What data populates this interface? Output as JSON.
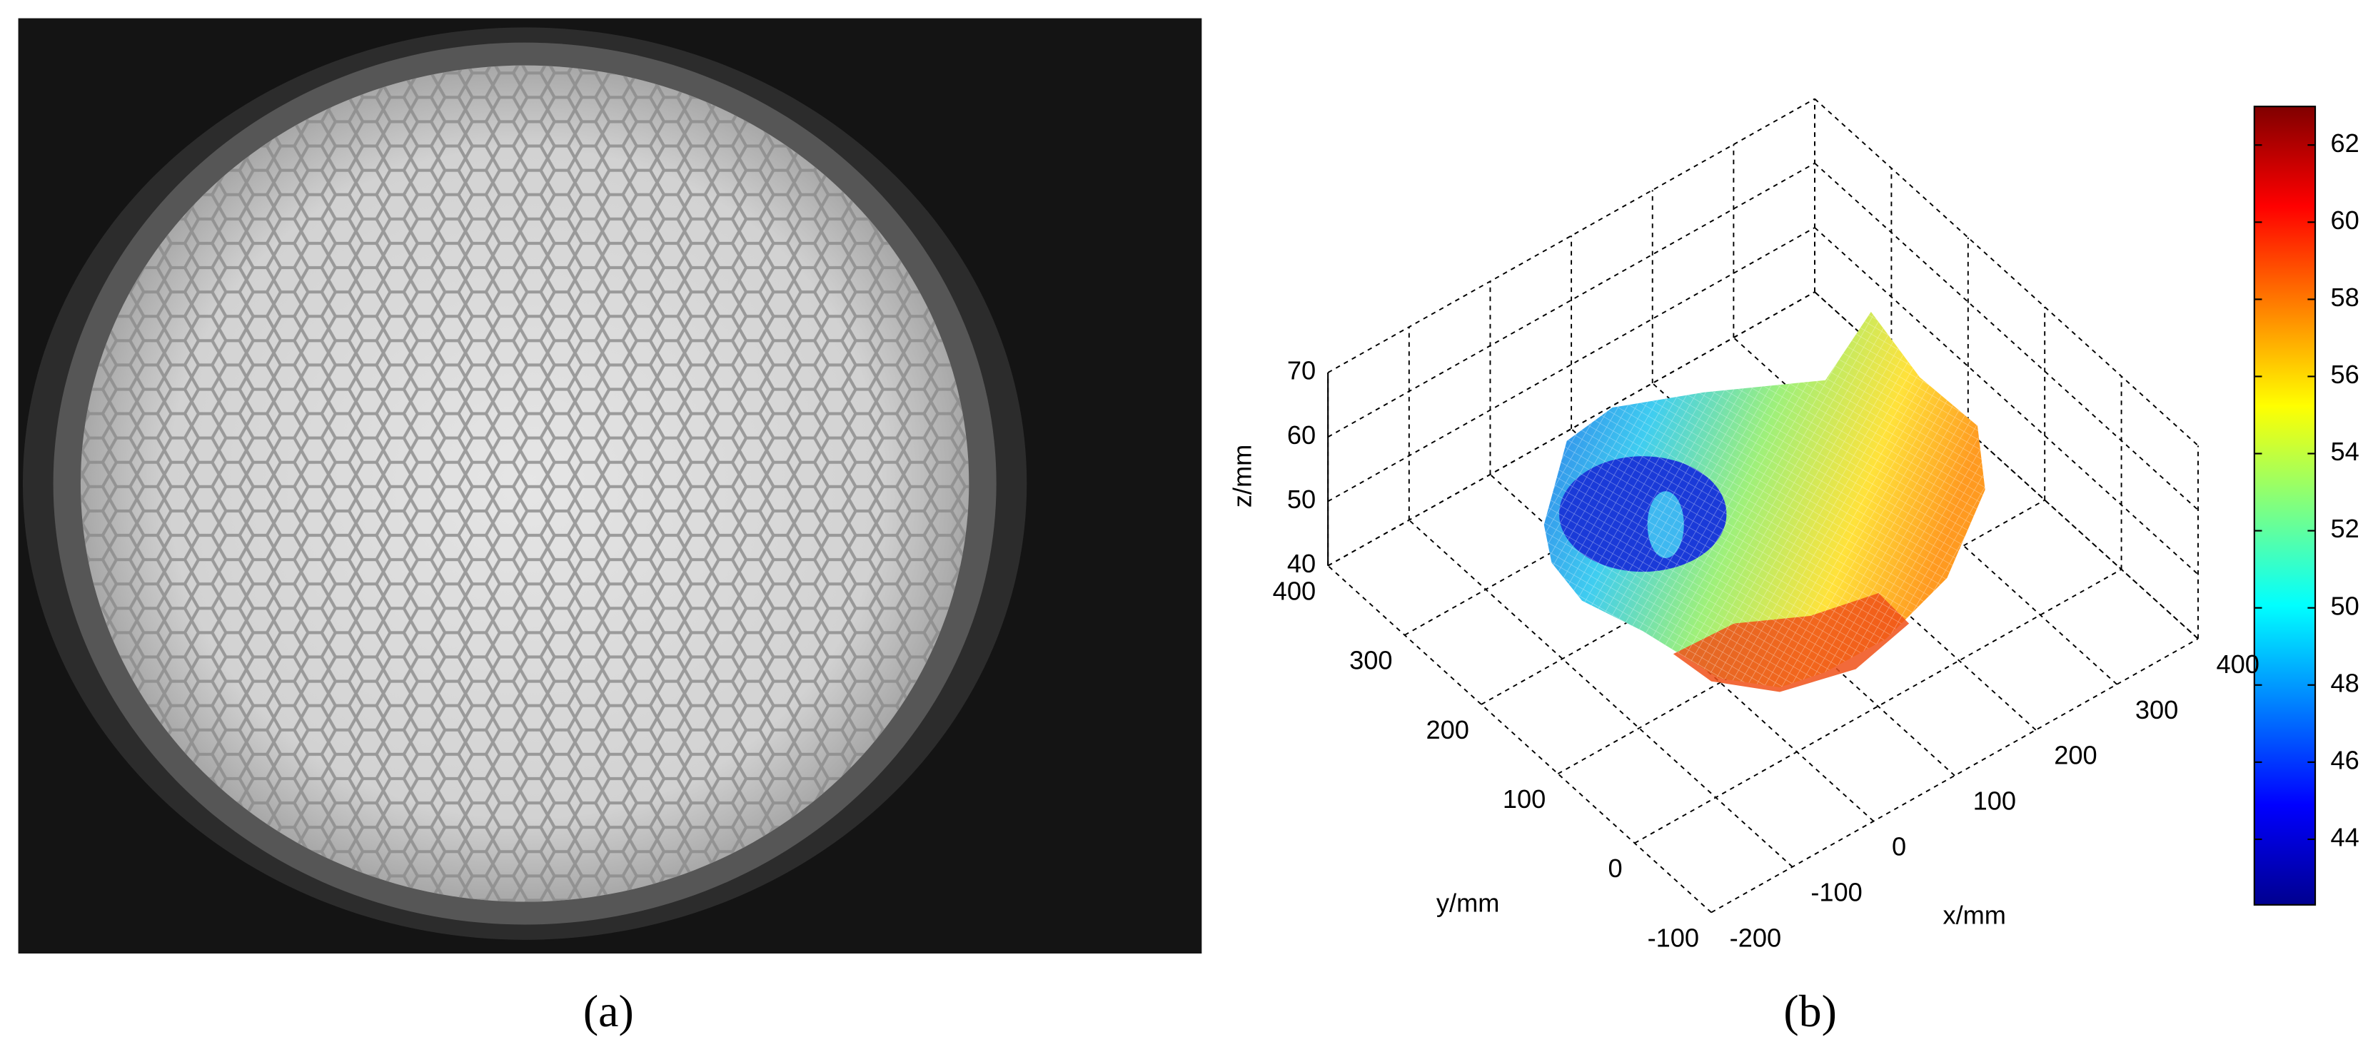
{
  "panels": [
    {
      "label": "(a)"
    },
    {
      "label": "(b)"
    }
  ],
  "chart_data": {
    "type": "surface",
    "xlabel": "x/mm",
    "ylabel": "y/mm",
    "zlabel": "z/mm",
    "xlim": [
      -200,
      400
    ],
    "xticks": [
      -200,
      -100,
      0,
      100,
      200,
      300,
      400
    ],
    "ylim": [
      -100,
      400
    ],
    "yticks": [
      -100,
      0,
      100,
      200,
      300,
      400
    ],
    "zlim": [
      40,
      70
    ],
    "zticks": [
      40,
      50,
      60,
      70
    ],
    "grid": true,
    "colorbar": {
      "colormap": "jet",
      "clim": [
        42.3,
        63
      ],
      "ticks": [
        44,
        46,
        48,
        50,
        52,
        54,
        56,
        58,
        60,
        62
      ]
    }
  }
}
